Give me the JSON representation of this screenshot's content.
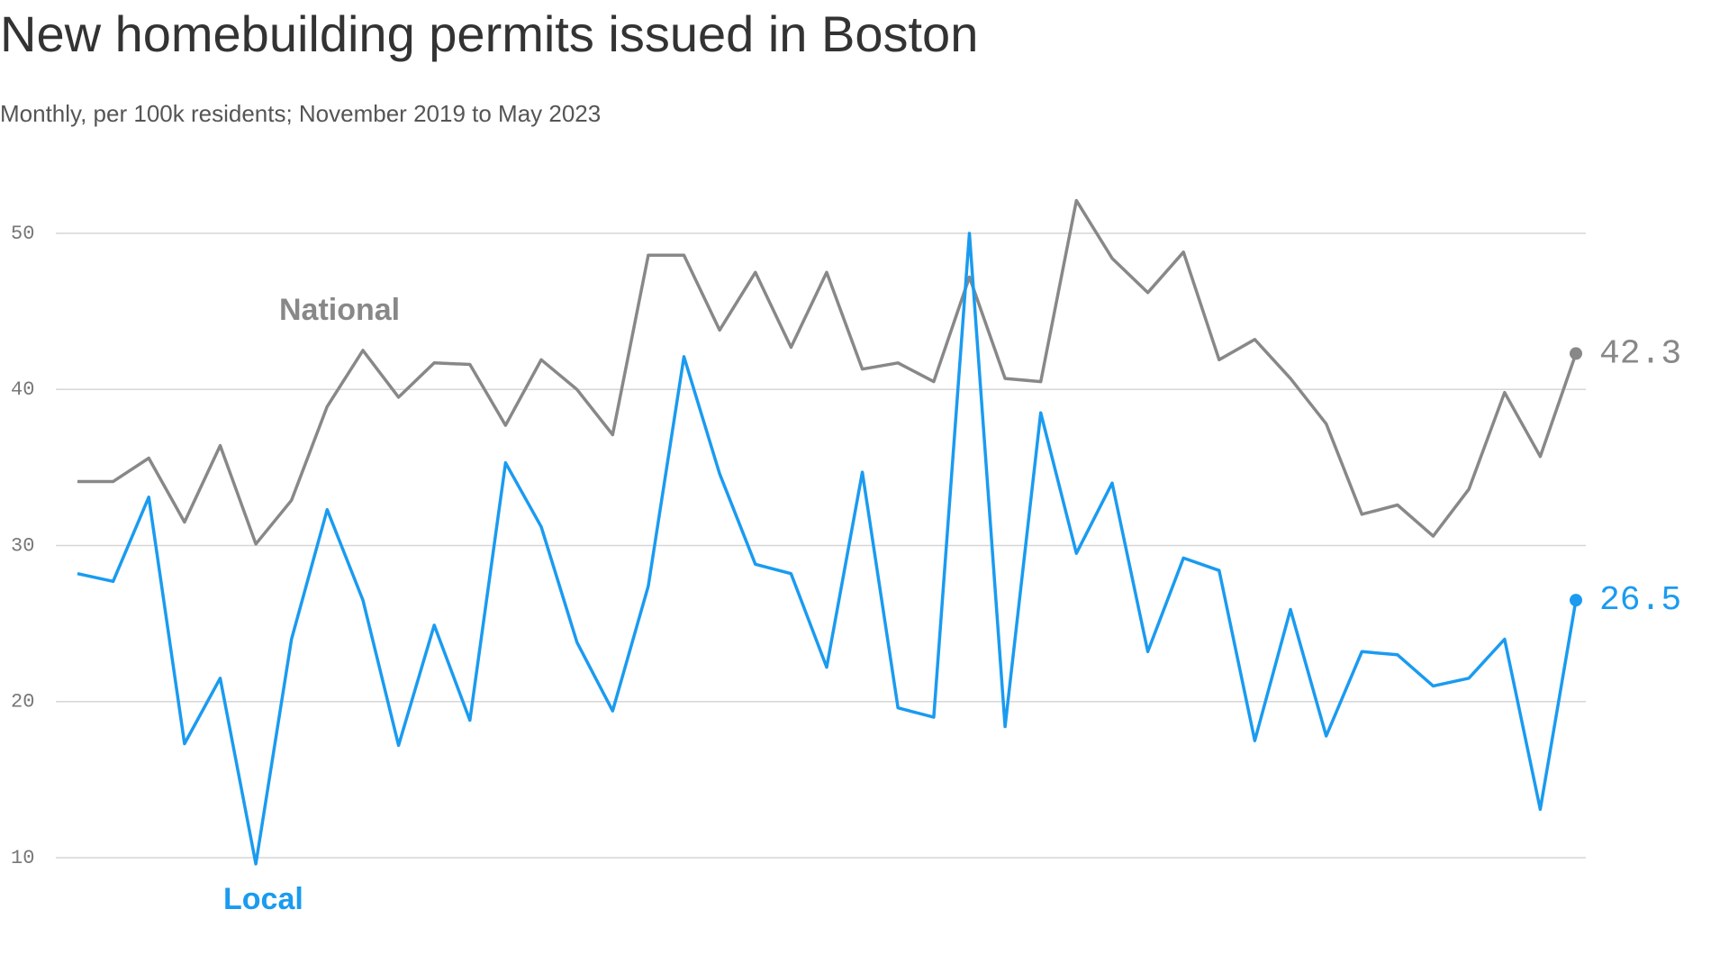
{
  "chart_data": {
    "type": "line",
    "title": "New homebuilding permits issued in Boston",
    "subtitle": "Monthly, per 100k residents; November 2019 to May 2023",
    "categories": [
      null,
      null,
      null,
      null,
      null,
      null,
      null,
      null,
      null,
      null,
      null,
      null,
      null,
      null,
      null,
      null,
      null,
      null,
      null,
      null,
      null,
      null,
      null,
      null,
      null,
      null,
      null,
      null,
      null,
      null,
      null,
      null,
      null,
      null,
      null,
      null,
      null,
      null,
      null,
      null,
      null,
      null,
      null
    ],
    "series": [
      {
        "name": "National",
        "color": "#888888",
        "values": [
          34.1,
          34.1,
          35.6,
          31.5,
          36.4,
          30.1,
          32.9,
          38.9,
          42.5,
          39.5,
          41.7,
          41.6,
          37.7,
          41.9,
          40.0,
          37.1,
          48.6,
          48.6,
          43.8,
          47.5,
          42.7,
          47.5,
          41.3,
          41.7,
          40.5,
          47.2,
          40.7,
          40.5,
          52.1,
          48.4,
          46.2,
          48.8,
          41.9,
          43.2,
          40.7,
          37.8,
          32.0,
          32.6,
          30.6,
          33.6,
          39.8,
          35.7,
          42.3
        ]
      },
      {
        "name": "Local",
        "color": "#1a9bf0",
        "values": [
          28.2,
          27.7,
          33.1,
          17.3,
          21.5,
          9.6,
          24.0,
          32.3,
          26.5,
          17.2,
          24.9,
          18.8,
          35.3,
          31.2,
          23.8,
          19.4,
          27.4,
          42.1,
          34.6,
          28.8,
          28.2,
          22.2,
          34.7,
          19.6,
          19.0,
          50.0,
          18.4,
          38.5,
          29.5,
          34.0,
          23.2,
          29.2,
          28.4,
          17.5,
          25.9,
          17.8,
          23.2,
          23.0,
          21.0,
          21.5,
          24.0,
          13.1,
          26.5
        ]
      }
    ],
    "ylim": [
      10,
      50
    ],
    "yticks": [
      10,
      20,
      30,
      40,
      50
    ],
    "grid": true
  }
}
